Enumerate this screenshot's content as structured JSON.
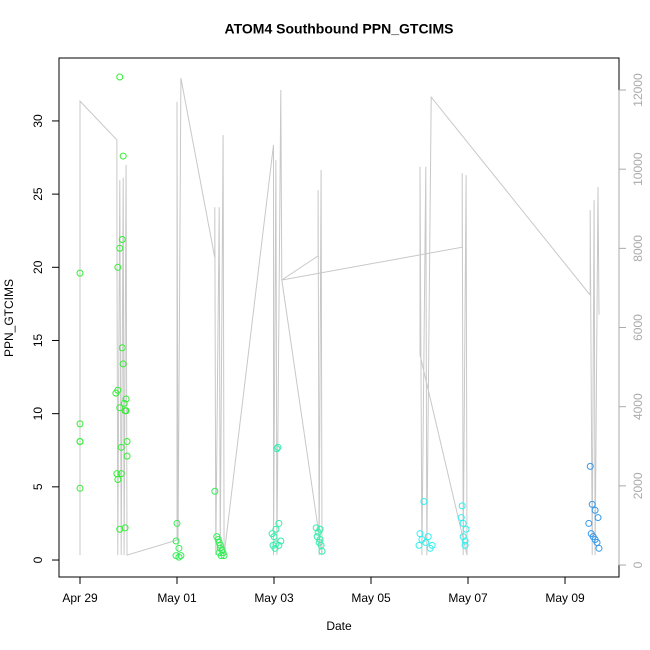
{
  "chart_data": {
    "type": "scatter",
    "title": "ATOM4 Southbound PPN_GTCIMS",
    "x_label": "Date",
    "y_label": "PPN_GTCIMS",
    "xlim": [
      -0.433,
      11.113
    ],
    "xticks": [
      {
        "value": 0,
        "label": "Apr 29"
      },
      {
        "value": 2,
        "label": "May 01"
      },
      {
        "value": 4,
        "label": "May 03"
      },
      {
        "value": 6,
        "label": "May 05"
      },
      {
        "value": 8,
        "label": "May 07"
      },
      {
        "value": 10,
        "label": "May 09"
      }
    ],
    "ylim": [
      -1.16,
      34.3
    ],
    "yticks": [
      0,
      5,
      10,
      15,
      20,
      25,
      30
    ],
    "y2lim": [
      -303,
      12809
    ],
    "y2ticks": [
      0,
      2000,
      4000,
      6000,
      8000,
      10000,
      12000
    ],
    "series": [
      {
        "type": "line",
        "axis": "y2",
        "color": "#c8c8c8",
        "x": [
          0,
          0,
          0.76,
          0.76,
          0.78,
          0.82,
          0.85,
          0.89,
          0.91,
          0.95,
          0.97,
          2.0,
          2.0,
          2.02,
          2.08,
          2.78,
          2.78,
          2.8,
          2.87,
          2.89,
          2.95,
          2.97,
          3.99,
          3.99,
          4.04,
          4.06,
          4.14,
          4.16,
          4.91,
          4.91,
          4.93,
          4.97,
          4.99,
          4.16,
          7.88,
          7.88,
          7.9,
          7.96,
          7.98,
          7.01,
          7.01,
          7.05,
          7.13,
          7.15,
          7.24,
          10.52,
          10.52,
          10.56,
          10.6,
          10.62,
          10.68,
          10.7
        ],
        "values": [
          250,
          11720,
          10740,
          8460,
          250,
          9730,
          250,
          9780,
          250,
          10110,
          250,
          630,
          11700,
          250,
          12300,
          7760,
          9040,
          250,
          9040,
          250,
          10860,
          250,
          10610,
          250,
          10230,
          250,
          12000,
          7200,
          7810,
          9470,
          250,
          9980,
          250,
          7200,
          8030,
          9900,
          250,
          9850,
          250,
          5310,
          10060,
          250,
          10060,
          250,
          11820,
          6820,
          8970,
          250,
          9220,
          250,
          9550,
          6320
        ]
      },
      {
        "type": "scatter",
        "color": "#33ee33",
        "x": [
          0,
          0,
          0,
          0,
          0,
          0.82,
          0.89,
          0.87,
          0.82,
          0.78,
          0.87,
          0.89,
          0.78,
          0.74,
          0.95,
          0.91,
          0.82,
          0.93,
          0.95,
          0.97,
          0.85,
          0.97,
          0.76,
          0.85,
          0.78,
          0.93,
          0.82
        ],
        "values": [
          19.6,
          9.3,
          8.1,
          8.1,
          4.9,
          33.0,
          27.6,
          21.9,
          21.3,
          20.0,
          14.5,
          13.4,
          11.6,
          11.4,
          11.0,
          10.7,
          10.4,
          10.2,
          10.2,
          8.1,
          7.7,
          7.1,
          5.9,
          5.9,
          5.5,
          2.2,
          2.1
        ]
      },
      {
        "type": "scatter",
        "color": "#33ee55",
        "x": [
          2.0,
          1.98,
          2.04,
          1.98,
          2.08,
          2.04,
          2.78,
          2.82,
          2.85,
          2.87,
          2.89,
          2.89,
          2.93,
          2.95,
          2.97,
          2.87,
          2.91
        ],
        "values": [
          2.5,
          1.3,
          0.8,
          0.3,
          0.3,
          0.2,
          4.7,
          1.6,
          1.4,
          1.2,
          1.0,
          0.8,
          0.7,
          0.5,
          0.3,
          0.5,
          0.3
        ]
      },
      {
        "type": "scatter",
        "color": "#33eeaa",
        "x": [
          4.08,
          4.06,
          4.1,
          4.04,
          3.96,
          4.0,
          4.14,
          4.04,
          4.1,
          3.98,
          4.02,
          4.87,
          4.95,
          4.91,
          4.89,
          4.95,
          4.93,
          4.97,
          4.99
        ],
        "values": [
          7.7,
          7.6,
          2.5,
          2.1,
          1.8,
          1.6,
          1.3,
          1.1,
          1.0,
          1.0,
          0.8,
          2.2,
          2.1,
          1.9,
          1.6,
          1.4,
          1.2,
          1.0,
          0.6
        ]
      },
      {
        "type": "scatter",
        "color": "#33eeee",
        "x": [
          7.09,
          7.01,
          7.18,
          7.05,
          7.13,
          6.99,
          7.22,
          7.26,
          7.88,
          7.86,
          7.9,
          7.96,
          7.9,
          7.94,
          7.94
        ],
        "values": [
          4.0,
          1.8,
          1.6,
          1.4,
          1.2,
          1.0,
          0.8,
          1.0,
          3.7,
          2.9,
          2.5,
          2.1,
          1.6,
          1.3,
          1.0
        ]
      },
      {
        "type": "scatter",
        "color": "#3399ee",
        "x": [
          10.52,
          10.56,
          10.62,
          10.68,
          10.49,
          10.54,
          10.58,
          10.62,
          10.66,
          10.7
        ],
        "values": [
          6.4,
          3.8,
          3.4,
          2.9,
          2.5,
          1.8,
          1.6,
          1.4,
          1.2,
          0.8
        ]
      }
    ]
  }
}
